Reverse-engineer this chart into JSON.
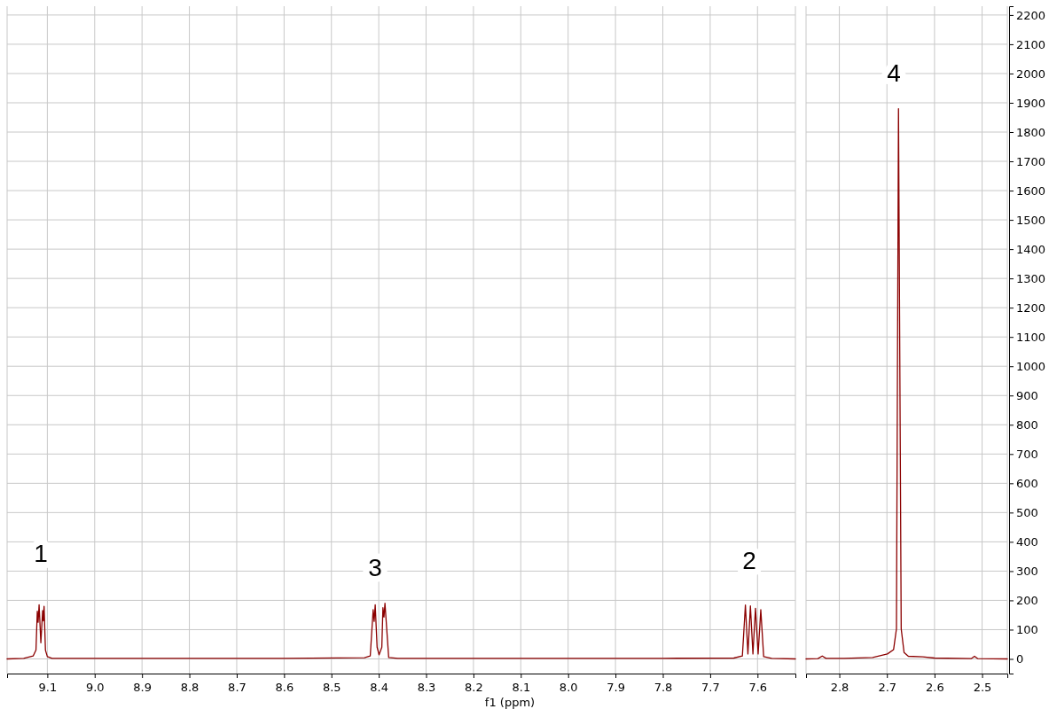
{
  "chart_data": [
    {
      "type": "line",
      "xlabel": "f1 (ppm)",
      "xlim": [
        9.185,
        7.52
      ],
      "ylim": [
        -50,
        2230
      ],
      "xticks": [
        9.1,
        {
          "value": 9,
          "label": "9.0"
        },
        8.9,
        8.8,
        8.7,
        8.6,
        8.5,
        8.4,
        8.3,
        8.2,
        8.1,
        {
          "value": 8,
          "label": "8.0"
        },
        7.9,
        7.8,
        7.7,
        7.6
      ],
      "yticks": [
        0,
        100,
        200,
        300,
        400,
        500,
        600,
        700,
        800,
        900,
        1000,
        1100,
        1200,
        1300,
        1400,
        1500,
        1600,
        1700,
        1800,
        1900,
        2000,
        2100,
        2200
      ],
      "tick_labels": "x",
      "grid": true,
      "marker": "none",
      "line_style": "solid",
      "annotations": [
        "1",
        "3",
        "2"
      ],
      "series": [
        {
          "color": "#8b0000",
          "x": [
            9.185,
            9.15,
            9.13,
            9.124,
            9.1212,
            9.1195,
            9.1174,
            9.1137,
            9.1099,
            9.1085,
            9.1069,
            9.104,
            9.1,
            9.09,
            8.8,
            8.6,
            8.43,
            8.418,
            8.4118,
            8.4097,
            8.4075,
            8.4035,
            8.3993,
            8.3935,
            8.3912,
            8.389,
            8.3869,
            8.379,
            8.36,
            8.2,
            7.8,
            7.65,
            7.632,
            7.6256,
            7.6203,
            7.615,
            7.6097,
            7.6043,
            7.5987,
            7.5931,
            7.587,
            7.57,
            7.52
          ],
          "values": [
            0,
            2,
            10,
            30,
            163,
            125,
            185,
            55,
            165,
            130,
            180,
            30,
            8,
            2,
            2,
            2,
            4,
            10,
            168,
            128,
            185,
            40,
            14,
            40,
            175,
            143,
            190,
            5,
            2,
            2,
            2,
            3,
            10,
            184,
            17,
            181,
            17,
            173,
            17,
            168,
            8,
            2,
            0
          ]
        }
      ]
    },
    {
      "type": "line",
      "xlim": [
        2.87,
        2.447
      ],
      "ylim": [
        -50,
        2230
      ],
      "xticks": [
        2.8,
        2.7,
        2.6,
        2.5
      ],
      "yticks": [
        0,
        100,
        200,
        300,
        400,
        500,
        600,
        700,
        800,
        900,
        1000,
        1100,
        1200,
        1300,
        1400,
        1500,
        1600,
        1700,
        1800,
        1900,
        2000,
        2100,
        2200
      ],
      "grid": true,
      "marker": "none",
      "line_style": "solid",
      "annotations": [
        "4"
      ],
      "series": [
        {
          "color": "#8b0000",
          "x": [
            2.87,
            2.845,
            2.836,
            2.828,
            2.79,
            2.73,
            2.699,
            2.686,
            2.68,
            2.6757,
            2.67,
            2.664,
            2.655,
            2.625,
            2.6,
            2.523,
            2.516,
            2.509,
            2.447
          ],
          "values": [
            0,
            1,
            10,
            2,
            2,
            5,
            17,
            32,
            103,
            1880,
            103,
            22,
            9,
            7,
            3,
            1,
            9,
            1,
            0
          ]
        }
      ]
    }
  ]
}
